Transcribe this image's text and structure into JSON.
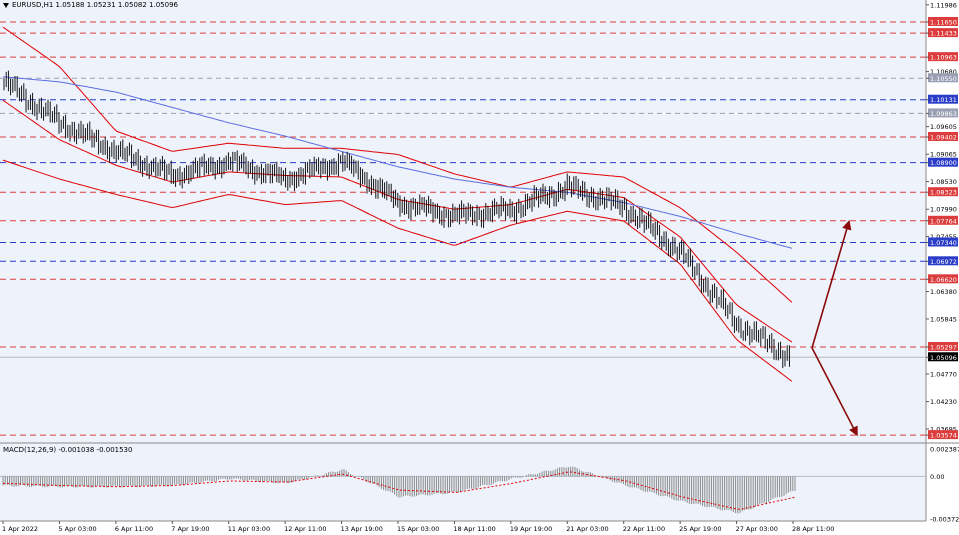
{
  "header": {
    "symbol_line": "EURUSD,H1  1.05188 1.05231 1.05082 1.05096",
    "macd_line": "MACD(12,26,9) -0.001038 -0.001530"
  },
  "colors": {
    "background": "#edf2fb",
    "grid": "#c8cfe0",
    "band": "#e00000",
    "ma": "#5a6ee0",
    "level_red": "#dc3c3c",
    "level_blue": "#2a3cc8",
    "arrow": "#8b0a0a",
    "candle": "#000000"
  },
  "price_scale": [
    "1.11986",
    "1.11650",
    "1.11433",
    "1.10963",
    "1.10680",
    "1.10550",
    "1.10131",
    "1.09863",
    "1.09605",
    "1.09402",
    "1.09065",
    "1.08900",
    "1.08530",
    "1.08323",
    "1.07990",
    "1.07764",
    "1.07455",
    "1.07340",
    "1.06972",
    "1.06620",
    "1.06380",
    "1.05845",
    "1.05297",
    "1.05096",
    "1.04770",
    "1.04230",
    "1.03695",
    "1.03574"
  ],
  "levels": [
    {
      "price": 1.1165,
      "label": "1.11650",
      "type": "red"
    },
    {
      "price": 1.11433,
      "label": "1.11433",
      "type": "red"
    },
    {
      "price": 1.10963,
      "label": "1.10963",
      "type": "red"
    },
    {
      "price": 1.1055,
      "label": "1.10550",
      "type": "gray"
    },
    {
      "price": 1.10131,
      "label": "1.10131",
      "type": "blue"
    },
    {
      "price": 1.09863,
      "label": "1.09863",
      "type": "gray"
    },
    {
      "price": 1.09402,
      "label": "1.09402",
      "type": "red"
    },
    {
      "price": 1.089,
      "label": "1.08900",
      "type": "blue"
    },
    {
      "price": 1.08323,
      "label": "1.08323",
      "type": "red"
    },
    {
      "price": 1.07764,
      "label": "1.07764",
      "type": "red"
    },
    {
      "price": 1.0734,
      "label": "1.07340",
      "type": "blue"
    },
    {
      "price": 1.06972,
      "label": "1.06972",
      "type": "blue"
    },
    {
      "price": 1.0662,
      "label": "1.06620",
      "type": "red"
    },
    {
      "price": 1.05297,
      "label": "1.05297",
      "type": "red"
    },
    {
      "price": 1.05096,
      "label": "1.05096",
      "type": "current"
    },
    {
      "price": 1.03574,
      "label": "1.03574",
      "type": "red"
    }
  ],
  "macd_scale": [
    "0.002387",
    "0.00",
    "-0.003721"
  ],
  "time_axis": [
    "1 Apr 2022",
    "5 Apr 03:00",
    "6 Apr 11:00",
    "7 Apr 19:00",
    "11 Apr 03:00",
    "12 Apr 11:00",
    "13 Apr 19:00",
    "15 Apr 03:00",
    "18 Apr 11:00",
    "19 Apr 19:00",
    "21 Apr 03:00",
    "22 Apr 11:00",
    "25 Apr 19:00",
    "27 Apr 03:00",
    "28 Apr 11:00"
  ],
  "chart_data": {
    "type": "line",
    "title": "",
    "symbol": "EURUSD,H1",
    "ylim": [
      1.0342,
      1.1208
    ],
    "x": [
      "1 Apr 2022",
      "5 Apr 03:00",
      "6 Apr 11:00",
      "7 Apr 19:00",
      "11 Apr 03:00",
      "12 Apr 11:00",
      "13 Apr 19:00",
      "15 Apr 03:00",
      "18 Apr 11:00",
      "19 Apr 19:00",
      "21 Apr 03:00",
      "22 Apr 11:00",
      "25 Apr 19:00",
      "27 Apr 03:00",
      "28 Apr 11:00"
    ],
    "series": [
      {
        "values": [
          1.1048,
          1.0968,
          1.0912,
          1.0865,
          1.0892,
          1.0858,
          1.0893,
          1.0812,
          1.0786,
          1.0798,
          1.0842,
          1.0804,
          1.0714,
          1.0575,
          1.0505
        ]
      },
      {
        "values": [
          1.1012,
          1.0935,
          1.0885,
          1.0852,
          1.0872,
          1.0865,
          1.0862,
          1.0818,
          1.0799,
          1.0808,
          1.0838,
          1.0822,
          1.0745,
          1.0612,
          1.0538
        ]
      },
      {
        "values": [
          1.1155,
          1.1078,
          1.0952,
          1.0912,
          1.0928,
          1.0918,
          1.0918,
          1.0906,
          1.0868,
          1.0842,
          1.0872,
          1.0862,
          1.0802,
          1.0715,
          1.0615
        ]
      },
      {
        "values": [
          1.0895,
          1.0858,
          1.0828,
          1.0802,
          1.0828,
          1.0808,
          1.0816,
          1.0762,
          1.0728,
          1.0768,
          1.0795,
          1.0776,
          1.0692,
          1.0544,
          1.0461
        ]
      },
      {
        "values": [
          1.1058,
          1.1048,
          1.1028,
          1.0998,
          1.0968,
          1.0942,
          1.0912,
          1.0882,
          1.0858,
          1.0842,
          1.0832,
          1.0812,
          1.0785,
          1.0752,
          1.0722
        ]
      }
    ],
    "macd": {
      "ylim": [
        -0.003721,
        0.002387
      ],
      "histogram": [
        -0.0008,
        -0.0009,
        -0.0009,
        -0.0008,
        -0.0002,
        -0.0006,
        0.0006,
        -0.0018,
        -0.0014,
        -0.0002,
        0.0009,
        -0.0008,
        -0.0022,
        -0.0032,
        -0.0012
      ],
      "signal": [
        -0.0006,
        -0.0008,
        -0.0009,
        -0.0008,
        -0.0004,
        -0.0005,
        0.0002,
        -0.0012,
        -0.0014,
        -0.0006,
        0.0004,
        -0.0004,
        -0.0018,
        -0.0029,
        -0.0018
      ]
    },
    "projection": {
      "start": 1.0528,
      "up_target": 1.0775,
      "down_target": 1.0358
    }
  }
}
